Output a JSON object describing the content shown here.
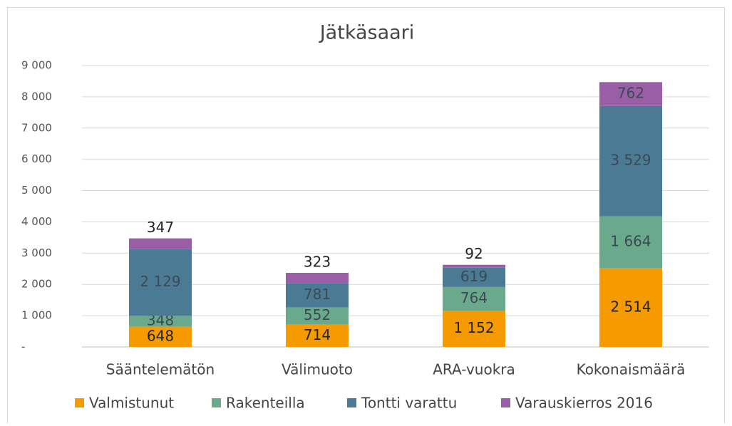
{
  "chart_data": {
    "type": "stacked_bar",
    "title": "Jätkäsaari",
    "categories": [
      "Sääntelemätön",
      "Välimuoto",
      "ARA-vuokra",
      "Kokonaismäärä"
    ],
    "series": [
      {
        "name": "Valmistunut",
        "color": "#f59a00",
        "values": [
          648,
          714,
          1152,
          2514
        ],
        "value_labels": [
          "648",
          "714",
          "1 152",
          "2 514"
        ]
      },
      {
        "name": "Rakenteilla",
        "color": "#6aa98b",
        "values": [
          348,
          552,
          764,
          1664
        ],
        "value_labels": [
          "348",
          "552",
          "764",
          "1 664"
        ]
      },
      {
        "name": "Tontti varattu",
        "color": "#4b7a95",
        "values": [
          2129,
          781,
          619,
          3529
        ],
        "value_labels": [
          "2 129",
          "781",
          "619",
          "3 529"
        ]
      },
      {
        "name": "Varauskierros 2016",
        "color": "#9a5ea6",
        "values": [
          347,
          323,
          92,
          762
        ],
        "value_labels": [
          "347",
          "323",
          "92",
          "762"
        ]
      }
    ],
    "ylim": [
      0,
      9000
    ],
    "yticks": [
      {
        "value": 0,
        "label": "-"
      },
      {
        "value": 1000,
        "label": "1 000"
      },
      {
        "value": 2000,
        "label": "2 000"
      },
      {
        "value": 3000,
        "label": "3 000"
      },
      {
        "value": 4000,
        "label": "4 000"
      },
      {
        "value": 5000,
        "label": "5 000"
      },
      {
        "value": 6000,
        "label": "6 000"
      },
      {
        "value": 7000,
        "label": "7 000"
      },
      {
        "value": 8000,
        "label": "8 000"
      },
      {
        "value": 9000,
        "label": "9 000"
      }
    ],
    "grid": true,
    "legend": "bottom"
  }
}
